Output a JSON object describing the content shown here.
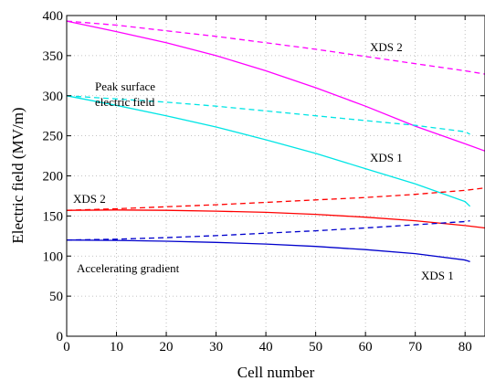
{
  "chart_data": {
    "type": "line",
    "xlabel": "Cell number",
    "ylabel": "Electric field (MV/m)",
    "xlim": [
      0,
      84
    ],
    "ylim": [
      0,
      400
    ],
    "xticks": [
      0,
      10,
      20,
      30,
      40,
      50,
      60,
      70,
      80
    ],
    "yticks": [
      0,
      50,
      100,
      150,
      200,
      250,
      300,
      350,
      400
    ],
    "grid": true,
    "series": [
      {
        "color": "#ff00ff",
        "style": "solid",
        "x": [
          0,
          10,
          20,
          30,
          40,
          50,
          60,
          70,
          80,
          84
        ],
        "y": [
          393,
          380,
          366,
          350,
          331,
          310,
          287,
          262,
          240,
          231
        ]
      },
      {
        "color": "#ff00ff",
        "style": "dashed",
        "x": [
          0,
          10,
          20,
          30,
          40,
          50,
          60,
          70,
          80,
          84
        ],
        "y": [
          393,
          388,
          381,
          374,
          366,
          358,
          349,
          340,
          331,
          327
        ]
      },
      {
        "color": "#00e5e5",
        "style": "solid",
        "x": [
          0,
          10,
          20,
          30,
          40,
          50,
          60,
          70,
          80,
          81
        ],
        "y": [
          300,
          288,
          275,
          261,
          245,
          228,
          209,
          190,
          168,
          162
        ]
      },
      {
        "color": "#00e5e5",
        "style": "dashed",
        "x": [
          0,
          10,
          20,
          30,
          40,
          50,
          60,
          70,
          80,
          81
        ],
        "y": [
          300,
          296,
          292,
          287,
          281,
          275,
          269,
          263,
          255,
          252
        ]
      },
      {
        "color": "#ff0000",
        "style": "solid",
        "x": [
          0,
          10,
          20,
          30,
          40,
          50,
          60,
          70,
          80,
          84
        ],
        "y": [
          157,
          157.5,
          157,
          156,
          154.5,
          152,
          148.5,
          144,
          138,
          135
        ]
      },
      {
        "color": "#ff0000",
        "style": "dashed",
        "x": [
          0,
          10,
          20,
          30,
          40,
          50,
          60,
          70,
          80,
          84
        ],
        "y": [
          157,
          159,
          161.5,
          164,
          167,
          170,
          173,
          177,
          182,
          185
        ]
      },
      {
        "color": "#0000cc",
        "style": "solid",
        "x": [
          0,
          10,
          20,
          30,
          40,
          50,
          60,
          70,
          80,
          81
        ],
        "y": [
          120,
          119.5,
          118.5,
          117,
          115,
          112,
          108,
          103,
          95,
          93
        ]
      },
      {
        "color": "#0000cc",
        "style": "dashed",
        "x": [
          0,
          10,
          20,
          30,
          40,
          50,
          60,
          70,
          80,
          81
        ],
        "y": [
          120,
          121,
          123,
          125.5,
          128.5,
          131.5,
          135,
          139,
          143,
          144
        ]
      }
    ],
    "annotations": [
      {
        "id": "xds2-peak",
        "text": "XDS 2"
      },
      {
        "id": "peak-surface-1",
        "text": "Peak surface"
      },
      {
        "id": "peak-surface-2",
        "text": "electric field"
      },
      {
        "id": "xds1-peak",
        "text": "XDS 1"
      },
      {
        "id": "xds2-acc",
        "text": "XDS 2"
      },
      {
        "id": "acc-gradient",
        "text": "Accelerating gradient"
      },
      {
        "id": "xds1-acc",
        "text": "XDS 1"
      }
    ]
  }
}
